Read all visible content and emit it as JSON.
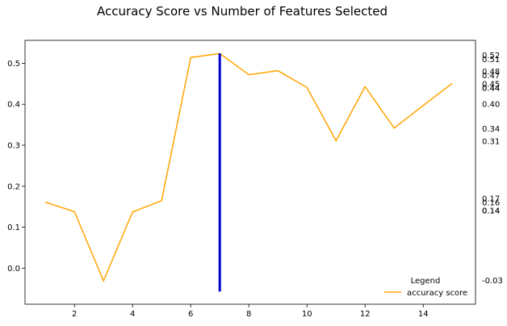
{
  "chart_data": {
    "type": "line",
    "title": "Accuracy Score vs Number of Features Selected",
    "xlabel": "",
    "ylabel": "",
    "xlim": [
      0.3,
      15.8
    ],
    "ylim": [
      -0.088,
      0.556
    ],
    "x_ticks": [
      2,
      4,
      6,
      8,
      10,
      12,
      14
    ],
    "y_ticks": [
      0.0,
      0.1,
      0.2,
      0.3,
      0.4,
      0.5
    ],
    "grid": false,
    "series": [
      {
        "name": "accuracy score",
        "color": "#FFA500",
        "x": [
          1,
          2,
          3,
          4,
          5,
          6,
          7,
          8,
          9,
          10,
          11,
          12,
          13,
          14,
          15
        ],
        "y": [
          0.161,
          0.138,
          -0.031,
          0.137,
          0.165,
          0.514,
          0.524,
          0.472,
          0.482,
          0.441,
          0.311,
          0.443,
          0.342,
          0.397,
          0.451
        ]
      }
    ],
    "vertical_marker": {
      "x": 7,
      "y_from": -0.057,
      "y_to": 0.524,
      "color": "#0000CC"
    },
    "right_labels": [
      "0.52",
      "0.51",
      "0.48",
      "0.47",
      "0.45",
      "0.44",
      "0.44",
      "0.40",
      "0.34",
      "0.31",
      "0.17",
      "0.16",
      "0.14",
      "0.14",
      "-0.03"
    ],
    "legend": {
      "title": "Legend",
      "placement": "lower-right"
    }
  }
}
